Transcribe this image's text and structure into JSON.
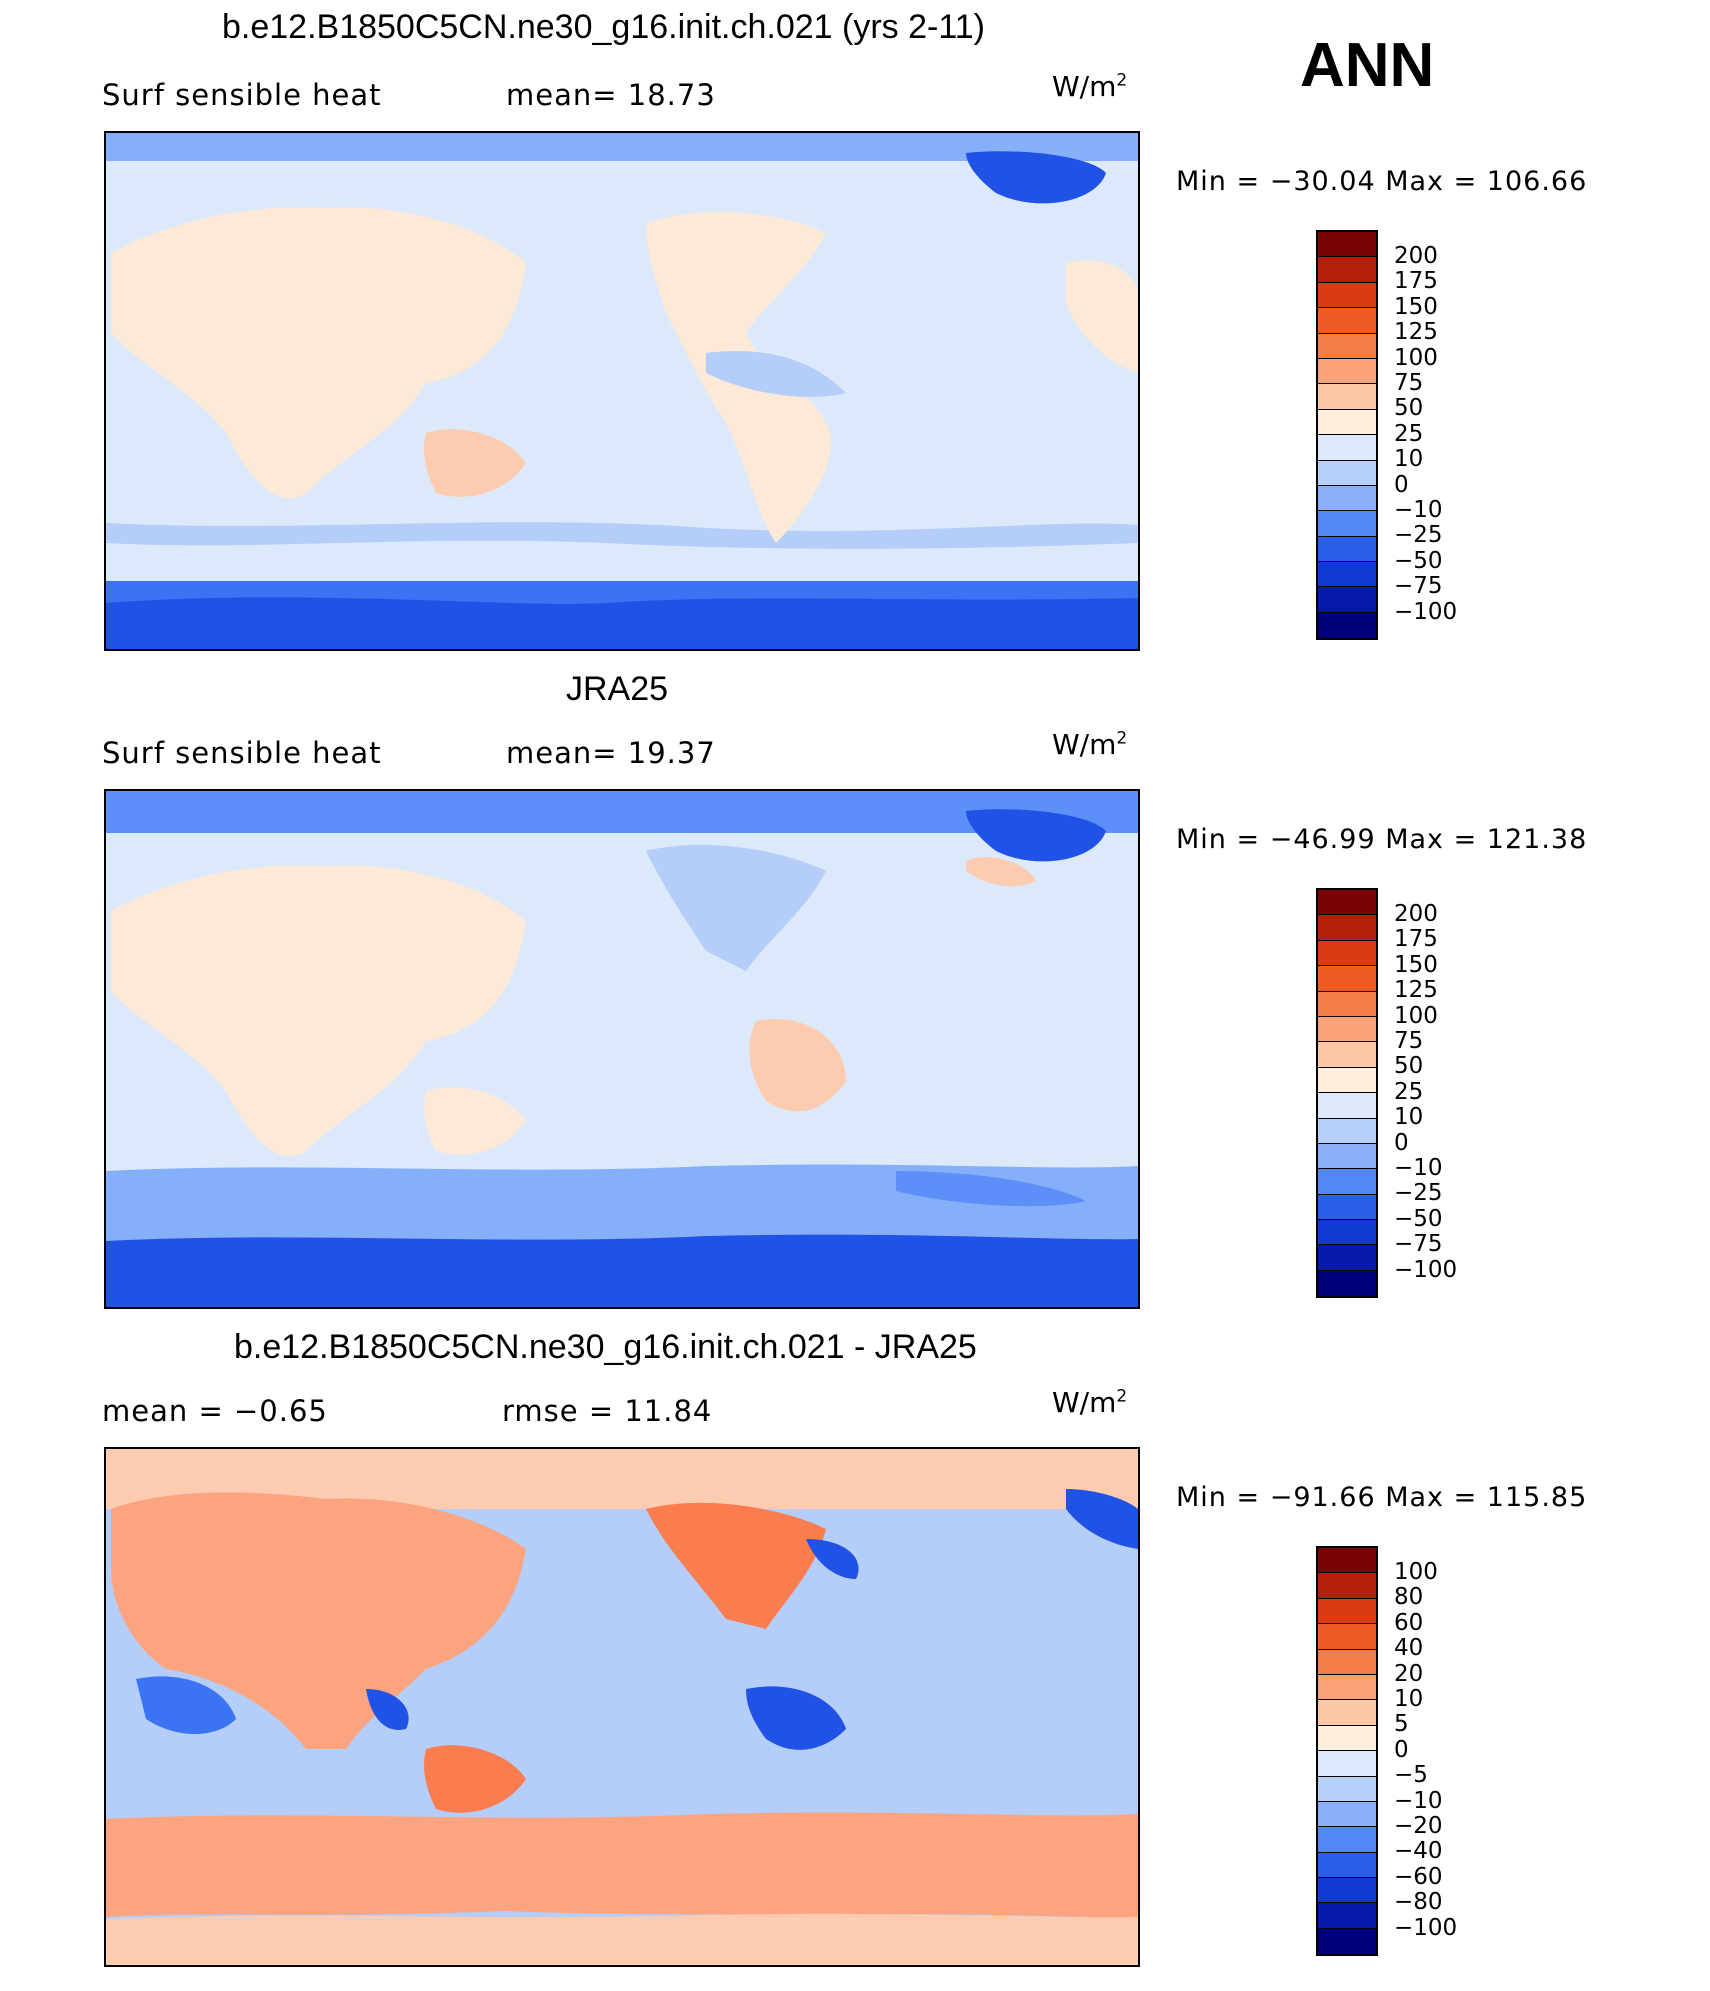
{
  "season": "ANN",
  "colors": {
    "div16": [
      "#000080",
      "#0000b8",
      "#0a2fd6",
      "#2152e6",
      "#3b74f2",
      "#5c8ff7",
      "#86aff9",
      "#b4cdf9",
      "#dbe9fb",
      "#fde9d8",
      "#fdcbb0",
      "#fca480",
      "#fa7d4f",
      "#f05523",
      "#cf2f0e",
      "#981a06",
      "#6e0a00"
    ]
  },
  "panels": [
    {
      "title": "b.e12.B1850C5CN.ne30_g16.init.ch.021 (yrs 2-11)",
      "left_label": "Surf  sensible  heat",
      "stat_label": "mean=   18.73",
      "units": "W/m",
      "units_sup": "2",
      "minmax": "Min  =  −30.04  Max  =  106.66",
      "levels": [
        "200",
        "175",
        "150",
        "125",
        "100",
        "75",
        "50",
        "25",
        "10",
        "0",
        "−10",
        "−25",
        "−50",
        "−75",
        "−100"
      ],
      "colors": [
        "#7a0403",
        "#b3200a",
        "#dc3a10",
        "#f05a23",
        "#f77d47",
        "#fba27a",
        "#fdc8a8",
        "#fdeede",
        "#dbe9fb",
        "#b7d0f9",
        "#8bb0f9",
        "#5387f5",
        "#2a5fe9",
        "#0f3ad4",
        "#0619ad",
        "#00007a"
      ]
    },
    {
      "title": "JRA25",
      "left_label": "Surf  sensible  heat",
      "stat_label": "mean=   19.37",
      "units": "W/m",
      "units_sup": "2",
      "minmax": "Min  =  −46.99  Max  =  121.38",
      "levels": [
        "200",
        "175",
        "150",
        "125",
        "100",
        "75",
        "50",
        "25",
        "10",
        "0",
        "−10",
        "−25",
        "−50",
        "−75",
        "−100"
      ],
      "colors": [
        "#7a0403",
        "#b3200a",
        "#dc3a10",
        "#f05a23",
        "#f77d47",
        "#fba27a",
        "#fdc8a8",
        "#fdeede",
        "#dbe9fb",
        "#b7d0f9",
        "#8bb0f9",
        "#5387f5",
        "#2a5fe9",
        "#0f3ad4",
        "#0619ad",
        "#00007a"
      ]
    },
    {
      "title": "b.e12.B1850C5CN.ne30_g16.init.ch.021 - JRA25",
      "left_label": "mean  =     −0.65",
      "stat_label": "rmse  =     11.84",
      "units": "W/m",
      "units_sup": "2",
      "minmax": "Min  =  −91.66  Max  =  115.85",
      "levels": [
        "100",
        "80",
        "60",
        "40",
        "20",
        "10",
        "5",
        "0",
        "−5",
        "−10",
        "−20",
        "−40",
        "−60",
        "−80",
        "−100"
      ],
      "colors": [
        "#7a0403",
        "#b3200a",
        "#dc3a10",
        "#f05a23",
        "#f77d47",
        "#fba27a",
        "#fdc8a8",
        "#fdeede",
        "#dbe9fb",
        "#b7d0f9",
        "#8bb0f9",
        "#5387f5",
        "#2a5fe9",
        "#0f3ad4",
        "#0619ad",
        "#00007a"
      ]
    }
  ]
}
